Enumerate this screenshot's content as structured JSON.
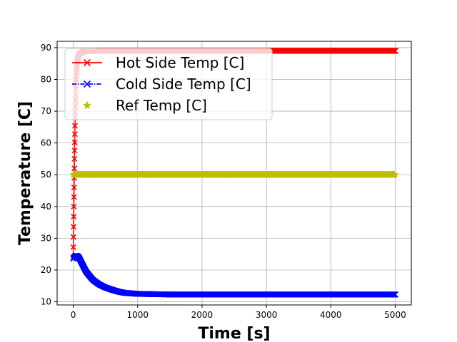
{
  "chart_data": {
    "type": "line",
    "title": "",
    "xlabel": "Time [s]",
    "ylabel": "Temperature [C]",
    "xlim": [
      -250,
      5250
    ],
    "ylim": [
      9,
      92
    ],
    "x_ticks": [
      0,
      1000,
      2000,
      3000,
      4000,
      5000
    ],
    "y_ticks": [
      10,
      20,
      30,
      40,
      50,
      60,
      70,
      80,
      90
    ],
    "grid": true,
    "legend_position": "top-left",
    "series": [
      {
        "name": "Hot Side Temp [C]",
        "color": "#ff0000",
        "marker": "x",
        "line_style": "solid",
        "x": [
          0,
          10,
          20,
          30,
          40,
          50,
          60,
          70,
          80,
          100,
          150,
          200,
          400,
          1000,
          3000,
          5000
        ],
        "y": [
          24,
          40,
          55,
          68,
          77,
          82,
          85,
          86.5,
          87.5,
          88.2,
          88.7,
          88.9,
          89,
          89,
          89,
          89
        ]
      },
      {
        "name": "Cold Side Temp [C]",
        "color": "#0000ff",
        "marker": "x",
        "line_style": "dashdot",
        "x": [
          0,
          30,
          60,
          90,
          100,
          150,
          200,
          300,
          400,
          500,
          600,
          700,
          800,
          1000,
          1500,
          2000,
          3000,
          4000,
          5000
        ],
        "y": [
          23.5,
          24.5,
          24.5,
          24,
          23.5,
          21.5,
          19.5,
          17,
          15.5,
          14.5,
          13.8,
          13.2,
          12.8,
          12.5,
          12.3,
          12.3,
          12.3,
          12.3,
          12.3
        ]
      },
      {
        "name": "Ref Temp [C]",
        "color": "#bfbf00",
        "marker": "star",
        "line_style": "none",
        "x": [
          0,
          1000,
          2000,
          3000,
          4000,
          5000
        ],
        "y": [
          50,
          50,
          50,
          50,
          50,
          50
        ]
      }
    ]
  }
}
